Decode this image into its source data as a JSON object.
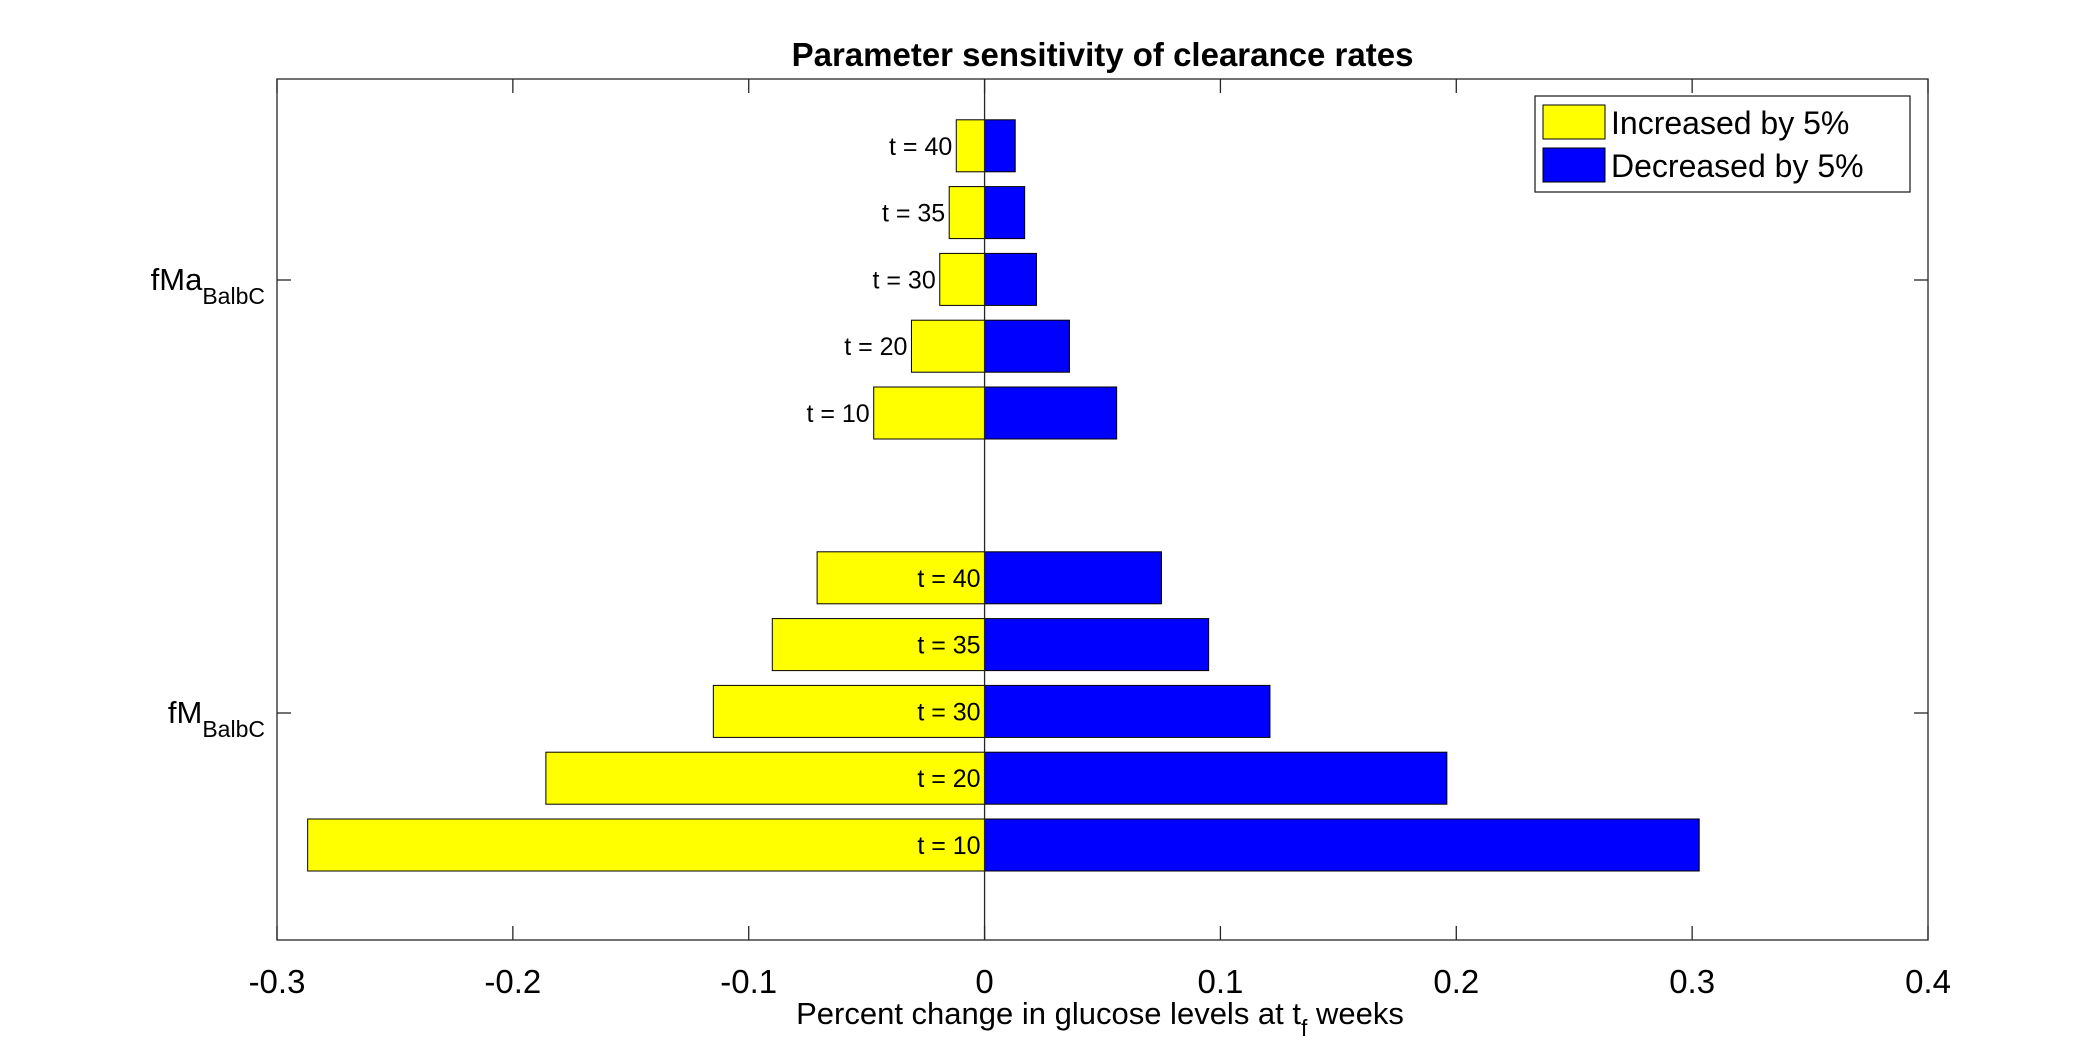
{
  "chart_data": {
    "type": "bar",
    "orientation": "horizontal",
    "title": "Parameter sensitivity of clearance rates",
    "xlabel": {
      "prefix": "Percent change in glucose levels at t",
      "subscript": "f",
      "suffix": " weeks"
    },
    "xlim": [
      -0.3,
      0.4
    ],
    "xticks": [
      -0.3,
      -0.2,
      -0.1,
      0,
      0.1,
      0.2,
      0.3,
      0.4
    ],
    "xtick_labels": [
      "-0.3",
      "-0.2",
      "-0.1",
      "0",
      "0.1",
      "0.2",
      "0.3",
      "0.4"
    ],
    "grid": false,
    "legend_position": "top-right",
    "legend": [
      {
        "name": "Increased by 5%",
        "color": "#ffff00"
      },
      {
        "name": "Decreased by 5%",
        "color": "#0000ff"
      }
    ],
    "groups": [
      {
        "name": "fMa",
        "subscript": "BalbC",
        "label_placement": "outside",
        "bars": [
          {
            "label": "t = 10",
            "increased": -0.047,
            "decreased": 0.056
          },
          {
            "label": "t = 20",
            "increased": -0.031,
            "decreased": 0.036
          },
          {
            "label": "t = 30",
            "increased": -0.019,
            "decreased": 0.022
          },
          {
            "label": "t = 35",
            "increased": -0.015,
            "decreased": 0.017
          },
          {
            "label": "t = 40",
            "increased": -0.012,
            "decreased": 0.013
          }
        ]
      },
      {
        "name": "fM",
        "subscript": "BalbC",
        "label_placement": "inside",
        "bars": [
          {
            "label": "t = 10",
            "increased": -0.287,
            "decreased": 0.303
          },
          {
            "label": "t = 20",
            "increased": -0.186,
            "decreased": 0.196
          },
          {
            "label": "t = 30",
            "increased": -0.115,
            "decreased": 0.121
          },
          {
            "label": "t = 35",
            "increased": -0.09,
            "decreased": 0.095
          },
          {
            "label": "t = 40",
            "increased": -0.071,
            "decreased": 0.075
          }
        ]
      }
    ]
  }
}
